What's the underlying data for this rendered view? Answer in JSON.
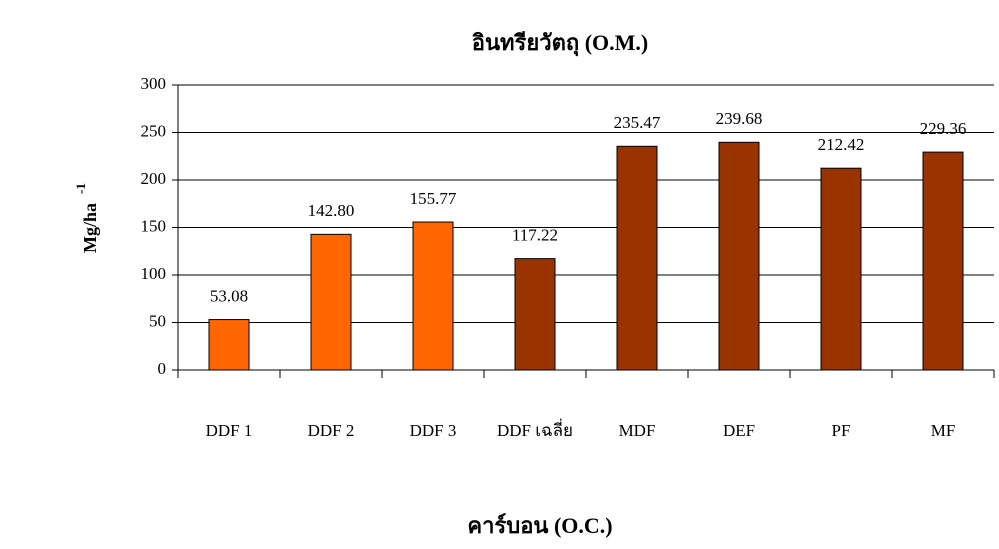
{
  "chart_data": {
    "type": "bar",
    "title": "อินทรียวัตถุ (O.M.)",
    "y_label": "Mg/ha",
    "y_label_superscript": "-1",
    "categories": [
      "DDF 1",
      "DDF 2",
      "DDF 3",
      "DDF เฉลี่ย",
      "MDF",
      "DEF",
      "PF",
      "MF"
    ],
    "values": [
      53.08,
      142.8,
      155.77,
      117.22,
      235.47,
      239.68,
      212.42,
      229.36
    ],
    "value_labels": [
      "53.08",
      "142.80",
      "155.77",
      "117.22",
      "235.47",
      "239.68",
      "212.42",
      "229.36"
    ],
    "colors": [
      "#ff6600",
      "#ff6600",
      "#ff6600",
      "#993300",
      "#993300",
      "#993300",
      "#993300",
      "#993300"
    ],
    "ylim": [
      0,
      300
    ],
    "yticks": [
      0,
      50,
      100,
      150,
      200,
      250,
      300
    ],
    "grid": true
  },
  "next_chart_title": "คาร์บอน (O.C.)"
}
